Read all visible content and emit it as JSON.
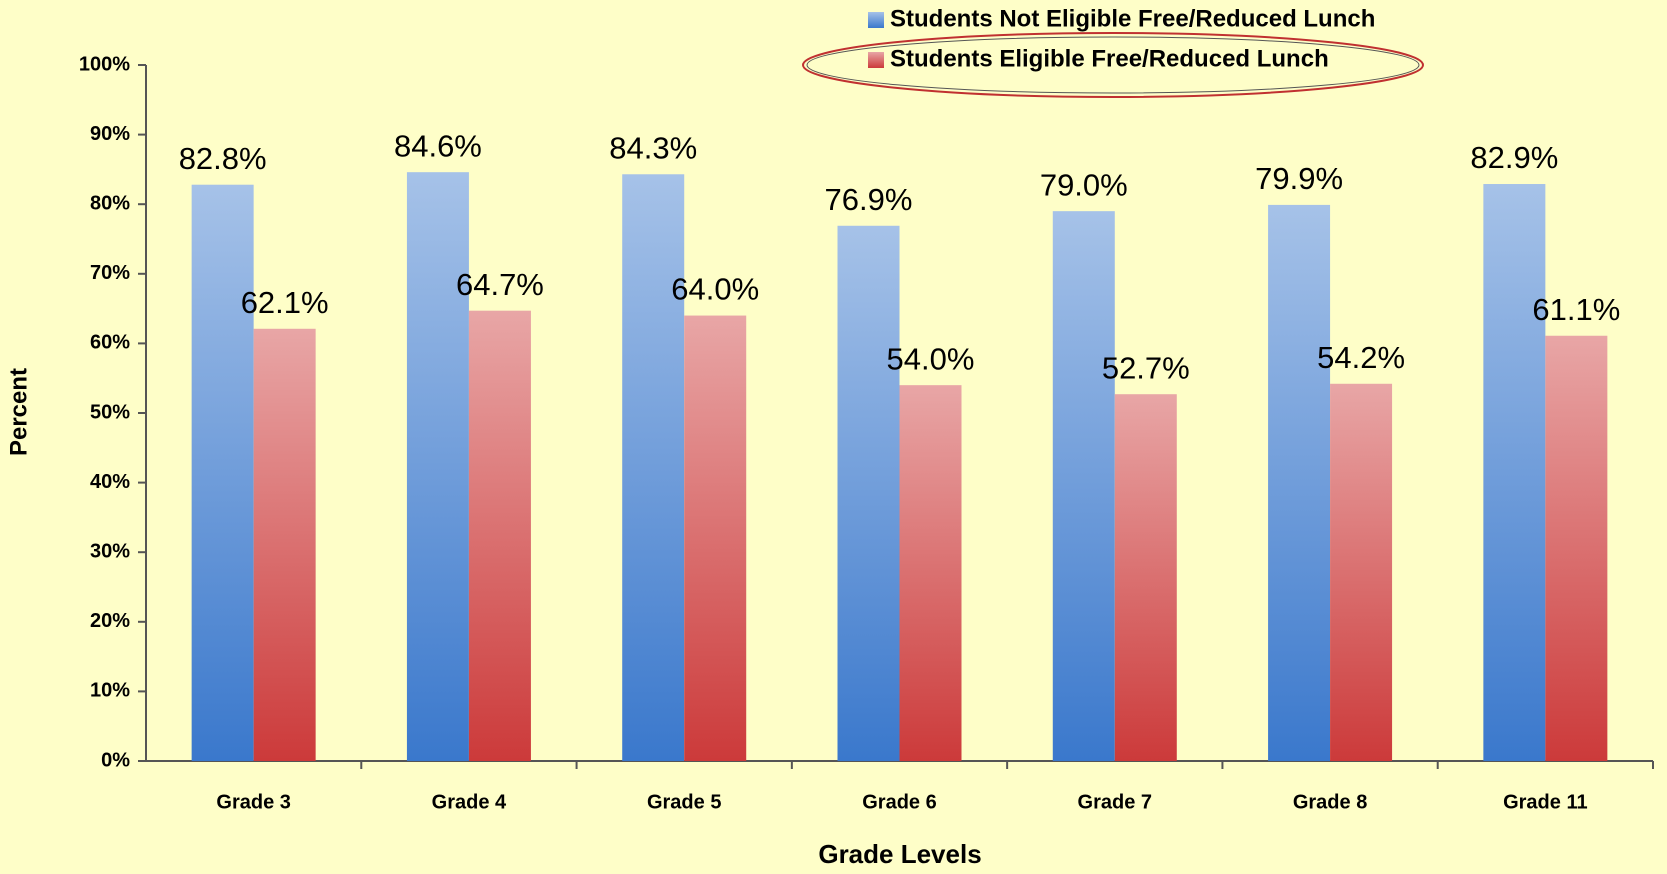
{
  "chart_data": {
    "type": "bar",
    "categories": [
      "Grade 3",
      "Grade 4",
      "Grade 5",
      "Grade 6",
      "Grade 7",
      "Grade 8",
      "Grade 11"
    ],
    "series": [
      {
        "name": "Students Not Eligible Free/Reduced Lunch",
        "color": "#3a78cc",
        "values": [
          82.8,
          84.6,
          84.3,
          76.9,
          79.0,
          79.9,
          82.9
        ],
        "value_labels": [
          "82.8%",
          "84.6%",
          "84.3%",
          "76.9%",
          "79.0%",
          "79.9%",
          "82.9%"
        ]
      },
      {
        "name": "Students Eligible Free/Reduced Lunch",
        "color": "#cc3a3a",
        "values": [
          62.1,
          64.7,
          64.0,
          54.0,
          52.7,
          54.2,
          61.1
        ],
        "value_labels": [
          "62.1%",
          "64.7%",
          "64.0%",
          "54.0%",
          "52.7%",
          "54.2%",
          "61.1%"
        ]
      }
    ],
    "xlabel": "Grade Levels",
    "ylabel": "Percent",
    "ylim": [
      0,
      100
    ],
    "yticks": [
      {
        "value": 0,
        "label": "0%"
      },
      {
        "value": 10,
        "label": "10%"
      },
      {
        "value": 20,
        "label": "20%"
      },
      {
        "value": 30,
        "label": "30%"
      },
      {
        "value": 40,
        "label": "40%"
      },
      {
        "value": 50,
        "label": "50%"
      },
      {
        "value": 60,
        "label": "60%"
      },
      {
        "value": 70,
        "label": "70%"
      },
      {
        "value": 80,
        "label": "80%"
      },
      {
        "value": 90,
        "label": "90%"
      },
      {
        "value": 100,
        "label": "100%"
      }
    ],
    "legend": "top",
    "grid": false
  }
}
